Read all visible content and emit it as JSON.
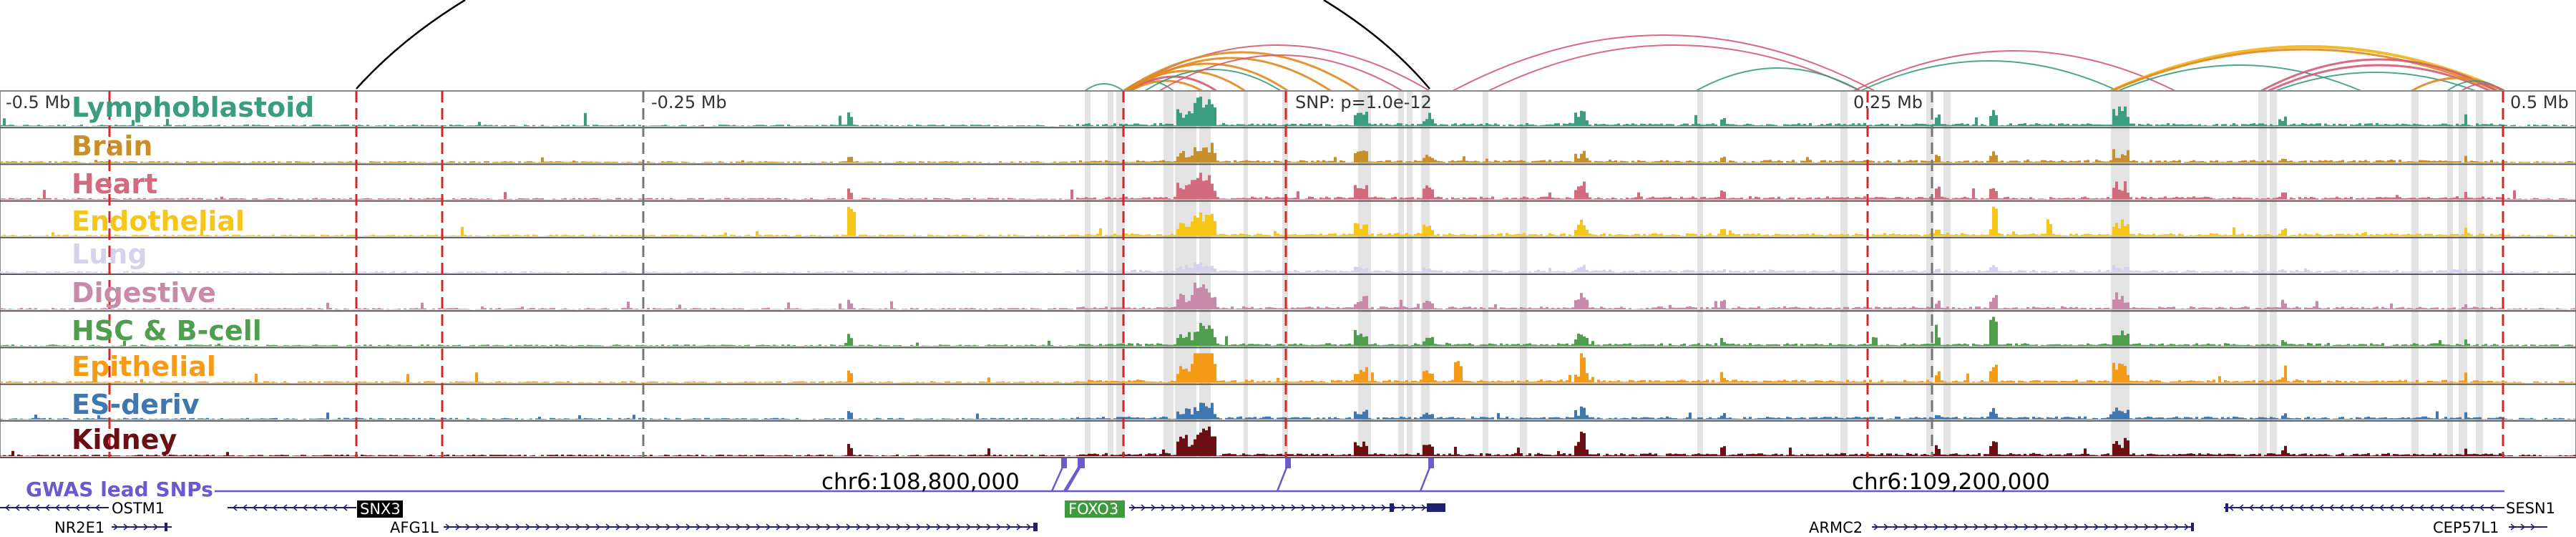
{
  "tracks": [
    {
      "name": "Lymphoblastoid",
      "color": "#3a9d7f"
    },
    {
      "name": "Brain",
      "color": "#c8902a"
    },
    {
      "name": "Heart",
      "color": "#d46a7e"
    },
    {
      "name": "Endothelial",
      "color": "#f5c518"
    },
    {
      "name": "Lung",
      "color": "#d6d2ec"
    },
    {
      "name": "Digestive",
      "color": "#c98aaa"
    },
    {
      "name": "HSC & B-cell",
      "color": "#4e9e4e"
    },
    {
      "name": "Epithelial",
      "color": "#f59b18"
    },
    {
      "name": "ES-deriv",
      "color": "#3f78b0"
    },
    {
      "name": "Kidney",
      "color": "#6b0f14"
    }
  ],
  "axis": {
    "ticks": [
      {
        "label": "-0.5 Mb",
        "pos": -0.5
      },
      {
        "label": "-0.25 Mb",
        "pos": -0.25
      },
      {
        "label": "0.25 Mb",
        "pos": 0.25
      },
      {
        "label": "0.5 Mb",
        "pos": 0.5
      }
    ],
    "snp_label": "SNP: p=1.0e-12"
  },
  "gwas": {
    "title": "GWAS lead SNPs",
    "color": "#6a5acd"
  },
  "coordinates": [
    {
      "label": "chr6:108,800,000"
    },
    {
      "label": "chr6:109,200,000"
    }
  ],
  "genes": [
    {
      "name": "OSTM1",
      "row": 1
    },
    {
      "name": "SNX3",
      "row": 1,
      "highlight": "black"
    },
    {
      "name": "FOXO3",
      "row": 1,
      "highlight": "green"
    },
    {
      "name": "SESN1",
      "row": 1
    },
    {
      "name": "NR2E1",
      "row": 2
    },
    {
      "name": "AFG1L",
      "row": 2
    },
    {
      "name": "ARMC2",
      "row": 2
    },
    {
      "name": "CEP57L1",
      "row": 2
    }
  ],
  "colors": {
    "red_marker": "#d62728",
    "gray_marker": "#777777",
    "shade": "#d9d9d9",
    "arc_pink": "#d45a74",
    "arc_orange": "#e08a20",
    "arc_green": "#3a9d7f",
    "arc_yellow": "#f0b418",
    "gene_blue": "#1f1f6e"
  }
}
